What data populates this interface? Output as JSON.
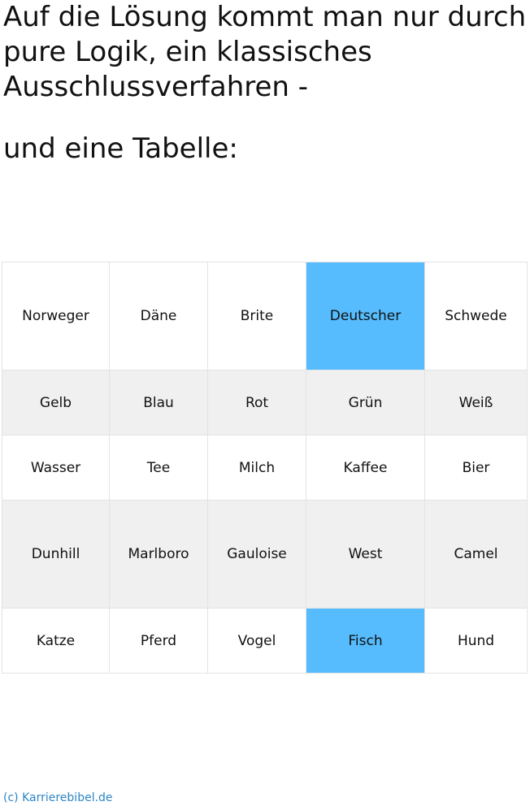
{
  "heading": {
    "intro": "Auf die Lösung kommt man nur durch pure Logik, ein klassisches Ausschlussverfahren -",
    "subtitle": "und eine Tabelle:"
  },
  "table": {
    "rows": [
      [
        "Norweger",
        "Däne",
        "Brite",
        "Deutscher",
        "Schwede"
      ],
      [
        "Gelb",
        "Blau",
        "Rot",
        "Grün",
        "Weiß"
      ],
      [
        "Wasser",
        "Tee",
        "Milch",
        "Kaffee",
        "Bier"
      ],
      [
        "Dunhill",
        "Marlboro",
        "Gauloise",
        "West",
        "Camel"
      ],
      [
        "Katze",
        "Pferd",
        "Vogel",
        "Fisch",
        "Hund"
      ]
    ],
    "highlighted": [
      "Deutscher",
      "Fisch"
    ]
  },
  "colors": {
    "highlight": "#56bcfd",
    "alt_row": "#f0f0f0",
    "footer_link": "#2b86c5"
  },
  "footer": {
    "credit": "(c) Karrierebibel.de"
  }
}
